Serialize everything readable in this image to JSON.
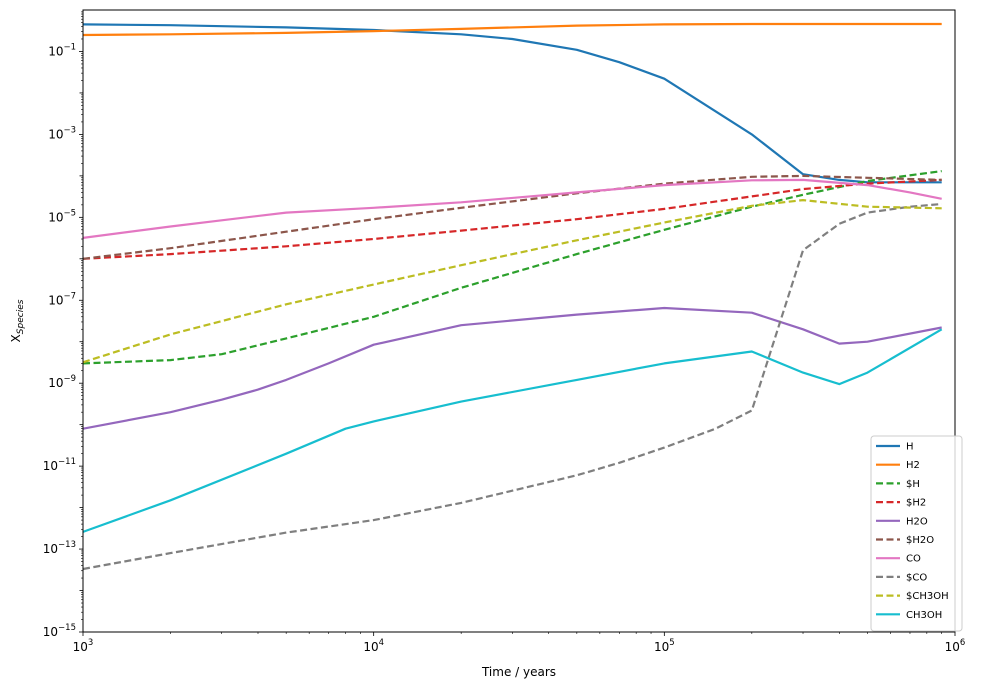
{
  "chart_data": {
    "type": "line",
    "xscale": "log",
    "yscale": "log",
    "xlim": [
      1000,
      1000000
    ],
    "ylim": [
      1e-15,
      1
    ],
    "xlabel": "Time / years",
    "ylabel": "X",
    "ylabel_sub": "Species",
    "grid": false,
    "legend_position": "lower-right",
    "x_ticks": [
      {
        "value": 1000,
        "base": "10",
        "exp": "3"
      },
      {
        "value": 10000,
        "base": "10",
        "exp": "4"
      },
      {
        "value": 100000,
        "base": "10",
        "exp": "5"
      },
      {
        "value": 1000000,
        "base": "10",
        "exp": "6"
      }
    ],
    "y_ticks": [
      {
        "value": 1e-15,
        "base": "10",
        "exp": "−15"
      },
      {
        "value": 1e-13,
        "base": "10",
        "exp": "−13"
      },
      {
        "value": 1e-11,
        "base": "10",
        "exp": "−11"
      },
      {
        "value": 1e-09,
        "base": "10",
        "exp": "−9"
      },
      {
        "value": 1e-07,
        "base": "10",
        "exp": "−7"
      },
      {
        "value": 1e-05,
        "base": "10",
        "exp": "−5"
      },
      {
        "value": 0.001,
        "base": "10",
        "exp": "−3"
      },
      {
        "value": 0.1,
        "base": "10",
        "exp": "−1"
      }
    ],
    "series": [
      {
        "name": "H",
        "color": "#1f77b4",
        "dash": "solid",
        "x": [
          1000,
          2000,
          5000,
          10000,
          20000,
          30000,
          50000,
          70000,
          100000,
          200000,
          300000,
          400000,
          500000,
          900000
        ],
        "y": [
          0.45,
          0.43,
          0.38,
          0.33,
          0.26,
          0.2,
          0.11,
          0.055,
          0.022,
          0.001,
          0.00011,
          8e-05,
          7e-05,
          7e-05
        ]
      },
      {
        "name": "H2",
        "color": "#ff7f0e",
        "dash": "solid",
        "x": [
          1000,
          2000,
          5000,
          10000,
          20000,
          50000,
          100000,
          200000,
          500000,
          900000
        ],
        "y": [
          0.25,
          0.26,
          0.28,
          0.31,
          0.35,
          0.42,
          0.45,
          0.46,
          0.46,
          0.46
        ]
      },
      {
        "name": "$H",
        "color": "#2ca02c",
        "dash": "dashed",
        "x": [
          1000,
          2000,
          3000,
          5000,
          10000,
          20000,
          50000,
          100000,
          200000,
          300000,
          500000,
          900000
        ],
        "y": [
          3e-09,
          3.6e-09,
          5e-09,
          1.2e-08,
          4e-08,
          2e-07,
          1.3e-06,
          5e-06,
          1.8e-05,
          3.5e-05,
          7.5e-05,
          0.00013
        ]
      },
      {
        "name": "$H2",
        "color": "#d62728",
        "dash": "dashed",
        "x": [
          1000,
          2000,
          5000,
          10000,
          20000,
          50000,
          100000,
          200000,
          300000,
          500000,
          900000
        ],
        "y": [
          1e-06,
          1.3e-06,
          2e-06,
          3e-06,
          4.8e-06,
          9e-06,
          1.6e-05,
          3.2e-05,
          4.8e-05,
          6.5e-05,
          8e-05
        ]
      },
      {
        "name": "H2O",
        "color": "#9467bd",
        "dash": "solid",
        "x": [
          1000,
          2000,
          3000,
          4000,
          5000,
          7000,
          10000,
          20000,
          50000,
          100000,
          200000,
          300000,
          400000,
          500000,
          900000
        ],
        "y": [
          8e-11,
          2e-10,
          4e-10,
          7e-10,
          1.2e-09,
          3e-09,
          8.5e-09,
          2.5e-08,
          4.5e-08,
          6.5e-08,
          5e-08,
          2e-08,
          9e-09,
          1e-08,
          2.2e-08
        ]
      },
      {
        "name": "$H2O",
        "color": "#8c564b",
        "dash": "dashed",
        "x": [
          1000,
          2000,
          5000,
          10000,
          20000,
          50000,
          100000,
          200000,
          300000,
          500000,
          900000
        ],
        "y": [
          1e-06,
          1.8e-06,
          4.5e-06,
          9e-06,
          1.7e-05,
          3.8e-05,
          6.5e-05,
          9.5e-05,
          0.0001,
          9e-05,
          8e-05
        ]
      },
      {
        "name": "CO",
        "color": "#e377c2",
        "dash": "solid",
        "x": [
          1000,
          2000,
          3000,
          5000,
          10000,
          20000,
          50000,
          100000,
          200000,
          300000,
          500000,
          700000,
          900000
        ],
        "y": [
          3.2e-06,
          6e-06,
          8.5e-06,
          1.3e-05,
          1.7e-05,
          2.3e-05,
          4e-05,
          6e-05,
          7.8e-05,
          8e-05,
          6e-05,
          4e-05,
          2.8e-05
        ]
      },
      {
        "name": "$CO",
        "color": "#7f7f7f",
        "dash": "dashed",
        "x": [
          1000,
          2000,
          5000,
          10000,
          20000,
          50000,
          70000,
          100000,
          150000,
          200000,
          300000,
          400000,
          500000,
          700000,
          900000
        ],
        "y": [
          3.3e-14,
          8e-14,
          2.5e-13,
          5e-13,
          1.3e-12,
          6e-12,
          1.2e-11,
          2.8e-11,
          8e-11,
          2.2e-10,
          1.6e-06,
          7e-06,
          1.3e-05,
          1.8e-05,
          2.1e-05
        ]
      },
      {
        "name": "$CH3OH",
        "color": "#bcbd22",
        "dash": "dashed",
        "x": [
          1000,
          2000,
          5000,
          10000,
          20000,
          50000,
          100000,
          200000,
          300000,
          500000,
          900000
        ],
        "y": [
          3.2e-09,
          1.5e-08,
          8e-08,
          2.4e-07,
          7e-07,
          2.8e-06,
          7.5e-06,
          1.9e-05,
          2.6e-05,
          1.8e-05,
          1.65e-05
        ]
      },
      {
        "name": "CH3OH",
        "color": "#17becf",
        "dash": "solid",
        "x": [
          1000,
          2000,
          5000,
          8000,
          10000,
          20000,
          50000,
          100000,
          200000,
          300000,
          400000,
          500000,
          900000
        ],
        "y": [
          2.6e-13,
          1.5e-12,
          2e-11,
          8e-11,
          1.2e-10,
          3.6e-10,
          1.2e-09,
          3e-09,
          5.8e-09,
          1.8e-09,
          9.5e-10,
          1.8e-09,
          2e-08
        ]
      }
    ]
  }
}
